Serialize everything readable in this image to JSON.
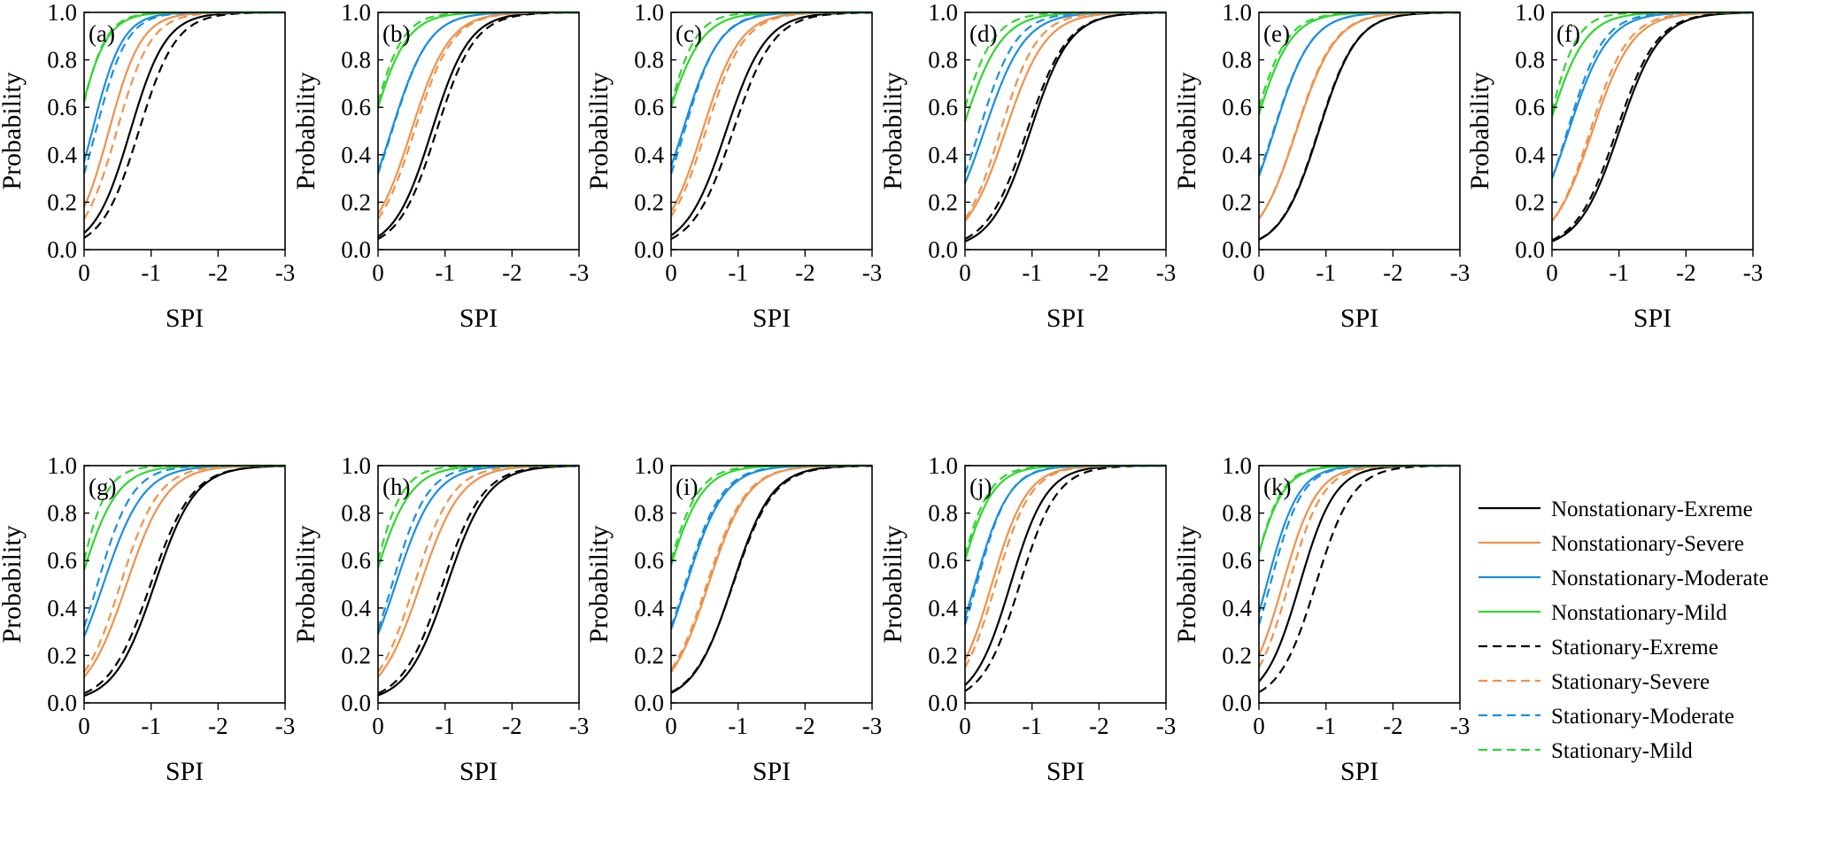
{
  "chart_data": {
    "type": "line",
    "description_of_series": "Each panel plots Probability against SPI for eight curves (4 nonstationary solid, 4 stationary dashed). Curves are logistic: y = 1/(1+exp(-(a + b*(-SPI)))) with a = ln(p0/(1-p0)); p0 = value at SPI 0, b = steepness.",
    "xlabel": "SPI",
    "ylabel": "Probability",
    "x_ticks": [
      "0",
      "-1",
      "-2",
      "-3"
    ],
    "y_ticks": [
      "0.0",
      "0.2",
      "0.4",
      "0.6",
      "0.8",
      "1.0"
    ],
    "xlim": [
      0,
      -3
    ],
    "ylim": [
      0,
      1
    ],
    "colors": {
      "extreme": "#000000",
      "severe": "#f0914a",
      "moderate": "#1a8fe0",
      "mild": "#2fd62f"
    },
    "legend": {
      "placement": "right of bottom row",
      "entries": [
        {
          "label": "Nonstationary-Exreme",
          "style": "solid",
          "color_key": "extreme"
        },
        {
          "label": "Nonstationary-Severe",
          "style": "solid",
          "color_key": "severe"
        },
        {
          "label": "Nonstationary-Moderate",
          "style": "solid",
          "color_key": "moderate"
        },
        {
          "label": "Nonstationary-Mild",
          "style": "solid",
          "color_key": "mild"
        },
        {
          "label": "Stationary-Exreme",
          "style": "dashed",
          "color_key": "extreme"
        },
        {
          "label": "Stationary-Severe",
          "style": "dashed",
          "color_key": "severe"
        },
        {
          "label": "Stationary-Moderate",
          "style": "dashed",
          "color_key": "moderate"
        },
        {
          "label": "Stationary-Mild",
          "style": "dashed",
          "color_key": "mild"
        }
      ]
    },
    "panels": [
      {
        "label": "(a)",
        "series": {
          "ns": {
            "extreme": [
              0.07,
              3.75
            ],
            "severe": [
              0.18,
              4.1
            ],
            "moderate": [
              0.37,
              4.4
            ],
            "mild": [
              0.63,
              4.5
            ]
          },
          "st": {
            "extreme": [
              0.05,
              3.6
            ],
            "severe": [
              0.13,
              3.9
            ],
            "moderate": [
              0.32,
              4.3
            ],
            "mild": [
              0.62,
              4.9
            ]
          }
        }
      },
      {
        "label": "(b)",
        "series": {
          "ns": {
            "extreme": [
              0.055,
              3.55
            ],
            "severe": [
              0.15,
              3.5
            ],
            "moderate": [
              0.33,
              3.55
            ],
            "mild": [
              0.6,
              3.8
            ]
          },
          "st": {
            "extreme": [
              0.045,
              3.5
            ],
            "severe": [
              0.13,
              3.5
            ],
            "moderate": [
              0.32,
              3.6
            ],
            "mild": [
              0.62,
              4.3
            ]
          }
        }
      },
      {
        "label": "(c)",
        "series": {
          "ns": {
            "extreme": [
              0.06,
              3.35
            ],
            "severe": [
              0.16,
              3.55
            ],
            "moderate": [
              0.35,
              3.6
            ],
            "mild": [
              0.6,
              3.6
            ]
          },
          "st": {
            "extreme": [
              0.045,
              3.3
            ],
            "severe": [
              0.14,
              3.5
            ],
            "moderate": [
              0.32,
              3.8
            ],
            "mild": [
              0.61,
              4.5
            ]
          }
        }
      },
      {
        "label": "(d)",
        "series": {
          "ns": {
            "extreme": [
              0.035,
              3.4
            ],
            "severe": [
              0.12,
              3.3
            ],
            "moderate": [
              0.28,
              3.3
            ],
            "mild": [
              0.54,
              3.4
            ]
          },
          "st": {
            "extreme": [
              0.045,
              3.3
            ],
            "severe": [
              0.13,
              3.6
            ],
            "moderate": [
              0.32,
              3.6
            ],
            "mild": [
              0.6,
              3.9
            ]
          }
        }
      },
      {
        "label": "(e)",
        "series": {
          "ns": {
            "extreme": [
              0.042,
              3.5
            ],
            "severe": [
              0.13,
              3.4
            ],
            "moderate": [
              0.31,
              3.55
            ],
            "mild": [
              0.57,
              3.7
            ]
          },
          "st": {
            "extreme": [
              0.043,
              3.5
            ],
            "severe": [
              0.13,
              3.45
            ],
            "moderate": [
              0.32,
              3.5
            ],
            "mild": [
              0.6,
              3.9
            ]
          }
        }
      },
      {
        "label": "(f)",
        "series": {
          "ns": {
            "extreme": [
              0.035,
              3.3
            ],
            "severe": [
              0.12,
              3.3
            ],
            "moderate": [
              0.3,
              3.4
            ],
            "mild": [
              0.56,
              3.6
            ]
          },
          "st": {
            "extreme": [
              0.04,
              3.3
            ],
            "severe": [
              0.12,
              3.5
            ],
            "moderate": [
              0.3,
              3.7
            ],
            "mild": [
              0.58,
              4.7
            ]
          }
        }
      },
      {
        "label": "(g)",
        "series": {
          "ns": {
            "extreme": [
              0.03,
              3.3
            ],
            "severe": [
              0.11,
              3.3
            ],
            "moderate": [
              0.28,
              3.3
            ],
            "mild": [
              0.56,
              3.6
            ]
          },
          "st": {
            "extreme": [
              0.04,
              3.2
            ],
            "severe": [
              0.13,
              3.5
            ],
            "moderate": [
              0.32,
              3.8
            ],
            "mild": [
              0.6,
              4.9
            ]
          }
        }
      },
      {
        "label": "(h)",
        "series": {
          "ns": {
            "extreme": [
              0.032,
              3.3
            ],
            "severe": [
              0.11,
              3.3
            ],
            "moderate": [
              0.29,
              3.4
            ],
            "mild": [
              0.57,
              3.6
            ]
          },
          "st": {
            "extreme": [
              0.04,
              3.3
            ],
            "severe": [
              0.13,
              3.5
            ],
            "moderate": [
              0.31,
              3.8
            ],
            "mild": [
              0.6,
              4.5
            ]
          }
        }
      },
      {
        "label": "(i)",
        "series": {
          "ns": {
            "extreme": [
              0.042,
              3.4
            ],
            "severe": [
              0.13,
              3.4
            ],
            "moderate": [
              0.31,
              3.5
            ],
            "mild": [
              0.58,
              3.7
            ]
          },
          "st": {
            "extreme": [
              0.045,
              3.3
            ],
            "severe": [
              0.14,
              3.4
            ],
            "moderate": [
              0.32,
              3.6
            ],
            "mild": [
              0.6,
              4.1
            ]
          }
        }
      },
      {
        "label": "(j)",
        "series": {
          "ns": {
            "extreme": [
              0.075,
              3.7
            ],
            "severe": [
              0.18,
              3.8
            ],
            "moderate": [
              0.36,
              3.9
            ],
            "mild": [
              0.6,
              4.0
            ]
          },
          "st": {
            "extreme": [
              0.05,
              3.6
            ],
            "severe": [
              0.15,
              3.8
            ],
            "moderate": [
              0.33,
              4.1
            ],
            "mild": [
              0.62,
              4.4
            ]
          }
        }
      },
      {
        "label": "(k)",
        "series": {
          "ns": {
            "extreme": [
              0.09,
              3.8
            ],
            "severe": [
              0.2,
              3.9
            ],
            "moderate": [
              0.38,
              4.2
            ],
            "mild": [
              0.63,
              4.3
            ]
          },
          "st": {
            "extreme": [
              0.045,
              3.6
            ],
            "severe": [
              0.15,
              3.9
            ],
            "moderate": [
              0.33,
              4.2
            ],
            "mild": [
              0.63,
              4.6
            ]
          }
        }
      }
    ]
  }
}
